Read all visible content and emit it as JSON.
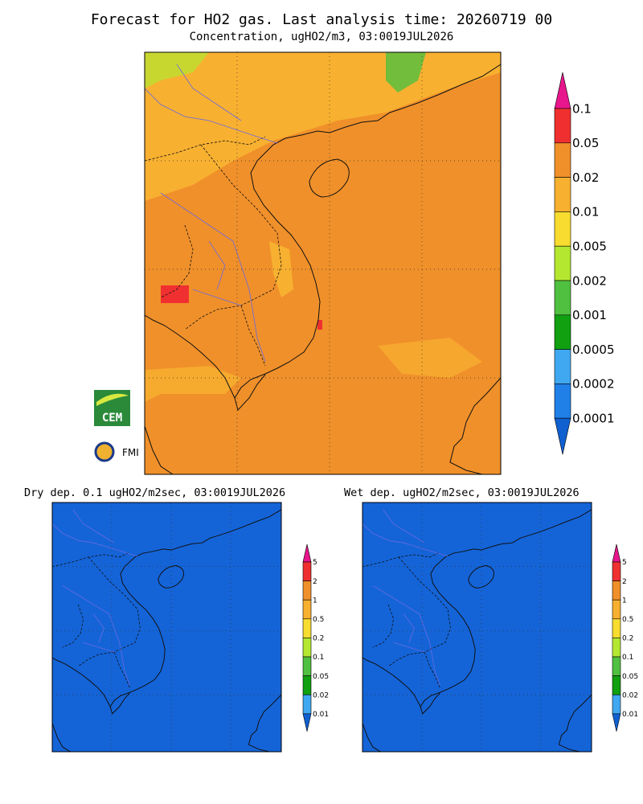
{
  "header": {
    "title": "Forecast for HO2 gas. Last analysis time: 20260719 00",
    "subtitle": "Concentration, ugHO2/m3, 03:0019JUL2026"
  },
  "main_map": {
    "legend": {
      "labels": [
        "0.1",
        "0.05",
        "0.02",
        "0.01",
        "0.005",
        "0.002",
        "0.001",
        "0.0005",
        "0.0002",
        "0.0001"
      ],
      "colors": [
        "#e8168c",
        "#f03030",
        "#f0902a",
        "#f8b030",
        "#f8dc30",
        "#b4e830",
        "#50c040",
        "#10a010",
        "#40a8f0",
        "#2080e8",
        "#1060d0"
      ]
    }
  },
  "logos": [
    "CEM",
    "FMI"
  ],
  "panels": [
    {
      "title": "Dry dep. 0.1 ugHO2/m2sec, 03:0019JUL2026",
      "legend": {
        "labels": [
          "5",
          "2",
          "1",
          "0.5",
          "0.2",
          "0.1",
          "0.05",
          "0.02",
          "0.01"
        ]
      }
    },
    {
      "title": "Wet dep. ugHO2/m2sec, 03:0019JUL2026",
      "legend": {
        "labels": [
          "5",
          "2",
          "1",
          "0.5",
          "0.2",
          "0.1",
          "0.05",
          "0.02",
          "0.01"
        ]
      }
    }
  ]
}
